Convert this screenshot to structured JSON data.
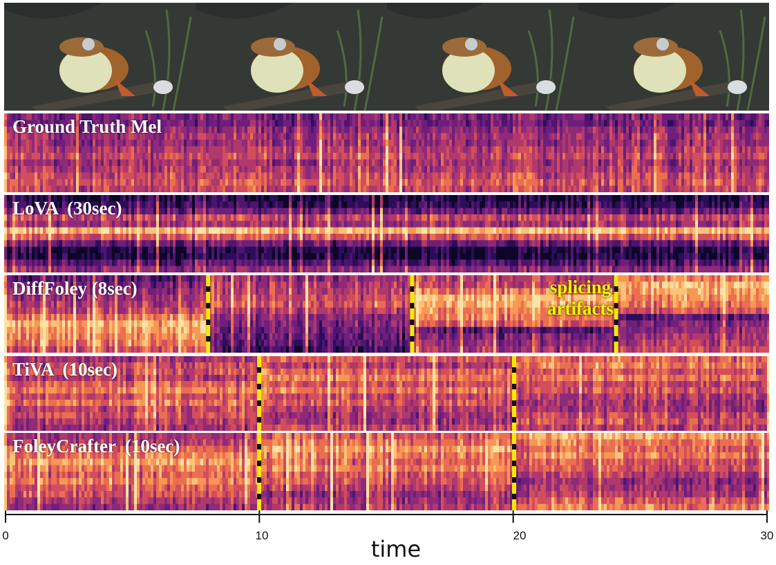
{
  "panels": [
    {
      "id": "ground-truth",
      "label": "Ground Truth Mel",
      "palette": "gt"
    },
    {
      "id": "lova",
      "label": "LoVA  (30sec)",
      "palette": "lova"
    },
    {
      "id": "difffoley",
      "label": "DiffFoley (8sec)",
      "palette": "diff"
    },
    {
      "id": "tiva",
      "label": "TiVA  (10sec)",
      "palette": "tiva"
    },
    {
      "id": "foleycrafter",
      "label": "FoleyCrafter  (10sec)",
      "palette": "foley"
    }
  ],
  "annotation": {
    "line1": "splicing",
    "line2": "artifacts"
  },
  "splices": {
    "difffoley": [
      8,
      16,
      24
    ],
    "tiva": [
      10,
      20
    ],
    "foleycrafter": [
      10,
      20
    ]
  },
  "axis": {
    "range": [
      0,
      30
    ],
    "ticks": [
      {
        "value": 0,
        "label": "0"
      },
      {
        "value": 10,
        "label": "10"
      },
      {
        "value": 20,
        "label": "20"
      },
      {
        "value": 30,
        "label": "30"
      }
    ],
    "label": "time"
  },
  "colors": {
    "splice": "#f5ea00",
    "annotation": "#f8f400"
  }
}
